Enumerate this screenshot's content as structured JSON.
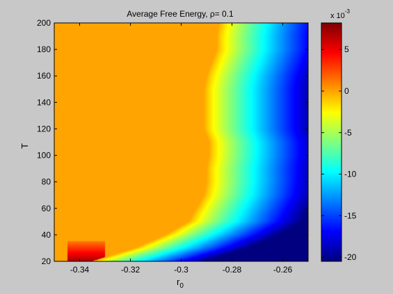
{
  "chart_data": {
    "type": "heatmap",
    "title": "Average Free Energy, ρ= 0.1",
    "xlabel": "r",
    "xlabel_subscript": "0",
    "ylabel": "T",
    "xlim": [
      -0.35,
      -0.25
    ],
    "ylim": [
      20,
      200
    ],
    "x_ticks": [
      -0.34,
      -0.32,
      -0.3,
      -0.28,
      -0.26
    ],
    "x_tick_labels": [
      "-0.34",
      "-0.32",
      "-0.3",
      "-0.28",
      "-0.26"
    ],
    "y_ticks": [
      20,
      40,
      60,
      80,
      100,
      120,
      140,
      160,
      180,
      200
    ],
    "y_tick_labels": [
      "20",
      "40",
      "60",
      "80",
      "100",
      "120",
      "140",
      "160",
      "180",
      "200"
    ],
    "colormap": "jet",
    "colorbar": {
      "min": -0.0205,
      "max": 0.0082,
      "ticks": [
        -0.02,
        -0.015,
        -0.01,
        -0.005,
        0,
        0.005
      ],
      "tick_labels": [
        "-20",
        "-15",
        "-10",
        "-5",
        "0",
        "5"
      ],
      "exponent_label": "x 10",
      "exponent": "-3"
    },
    "plateau_value": 0.0,
    "boundary": {
      "T": [
        20,
        30,
        40,
        50,
        60,
        70,
        80,
        90,
        100,
        110,
        120,
        130,
        140,
        150,
        160,
        170,
        180,
        190,
        200
      ],
      "r0": [
        -0.335,
        -0.318,
        -0.306,
        -0.297,
        -0.294,
        -0.291,
        -0.29,
        -0.29,
        -0.289,
        -0.289,
        -0.291,
        -0.291,
        -0.291,
        -0.291,
        -0.29,
        -0.288,
        -0.286,
        -0.286,
        -0.285
      ]
    },
    "peak_region": {
      "r0_range": [
        -0.345,
        -0.33
      ],
      "T_range": [
        20,
        30
      ],
      "value": 0.007
    },
    "right_edge_value": -0.0205,
    "decay_width": 0.045
  },
  "colors": {
    "figure_background": "#c8c8c8",
    "axes_frame": "#000000"
  }
}
